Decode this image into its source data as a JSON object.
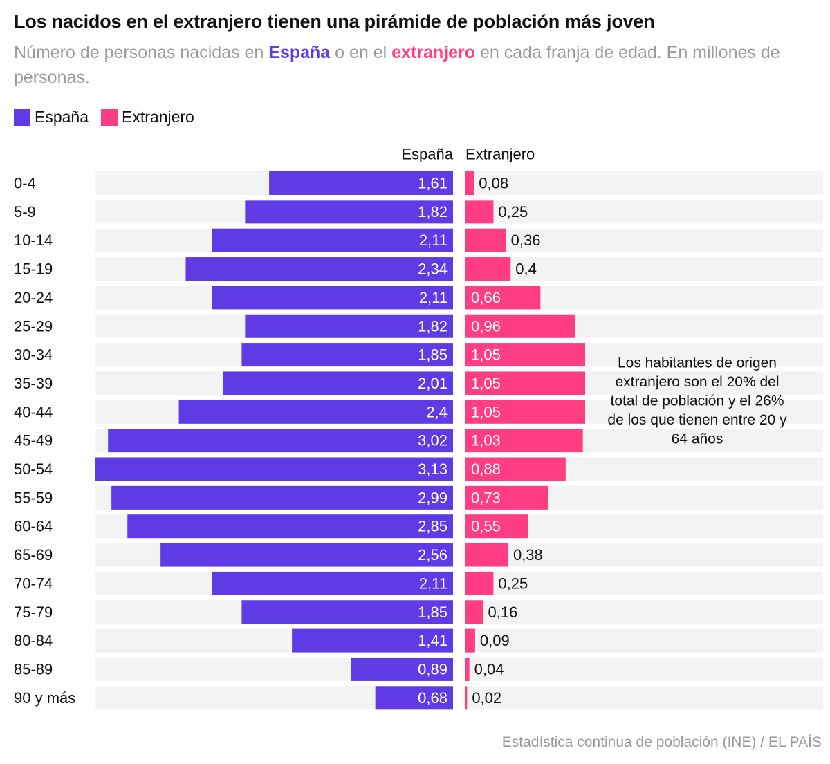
{
  "header": {
    "title": "Los nacidos en el extranjero tienen una pirámide de población más joven",
    "subtitle_pre": "Número de personas nacidas en ",
    "subtitle_es": "España",
    "subtitle_mid": " o en el ",
    "subtitle_ex": "extranjero",
    "subtitle_post": " en cada franja de edad. En millones de personas."
  },
  "legend": {
    "items": [
      {
        "label": "España",
        "color": "#5f3be6"
      },
      {
        "label": "Extranjero",
        "color": "#ff3d82"
      }
    ]
  },
  "colors": {
    "espana": "#5f3be6",
    "extranjero": "#ff3d82",
    "track": "#f3f3f3"
  },
  "chart_data": {
    "type": "bar",
    "orientation": "horizontal-pyramid",
    "column_headers": [
      "España",
      "Extranjero"
    ],
    "categories": [
      "0-4",
      "5-9",
      "10-14",
      "15-19",
      "20-24",
      "25-29",
      "30-34",
      "35-39",
      "40-44",
      "45-49",
      "50-54",
      "55-59",
      "60-64",
      "65-69",
      "70-74",
      "75-79",
      "80-84",
      "85-89",
      "90 y más"
    ],
    "series": [
      {
        "name": "España",
        "values": [
          1.61,
          1.82,
          2.11,
          2.34,
          2.11,
          1.82,
          1.85,
          2.01,
          2.4,
          3.02,
          3.13,
          2.99,
          2.85,
          2.56,
          2.11,
          1.85,
          1.41,
          0.89,
          0.68
        ]
      },
      {
        "name": "Extranjero",
        "values": [
          0.08,
          0.25,
          0.36,
          0.4,
          0.66,
          0.96,
          1.05,
          1.05,
          1.05,
          1.03,
          0.88,
          0.73,
          0.55,
          0.38,
          0.25,
          0.16,
          0.09,
          0.04,
          0.02
        ]
      }
    ],
    "value_labels": {
      "España": [
        "1,61",
        "1,82",
        "2,11",
        "2,34",
        "2,11",
        "1,82",
        "1,85",
        "2,01",
        "2,4",
        "3,02",
        "3,13",
        "2,99",
        "2,85",
        "2,56",
        "2,11",
        "1,85",
        "1,41",
        "0,89",
        "0,68"
      ],
      "Extranjero": [
        "0,08",
        "0,25",
        "0,36",
        "0,4",
        "0,66",
        "0,96",
        "1,05",
        "1,05",
        "1,05",
        "1,03",
        "0,88",
        "0,73",
        "0,55",
        "0,38",
        "0,25",
        "0,16",
        "0,09",
        "0,04",
        "0,02"
      ]
    },
    "annotation": {
      "lines": [
        "Los habitantes de origen",
        "extranjero son el 20% del",
        "total de población y el 26%",
        "de los que tienen entre 20 y",
        "64 años"
      ]
    },
    "grid": false,
    "legend_position": "top-left"
  },
  "footer": {
    "source": "Estadística continua de población (INE) / EL PAÍS"
  }
}
